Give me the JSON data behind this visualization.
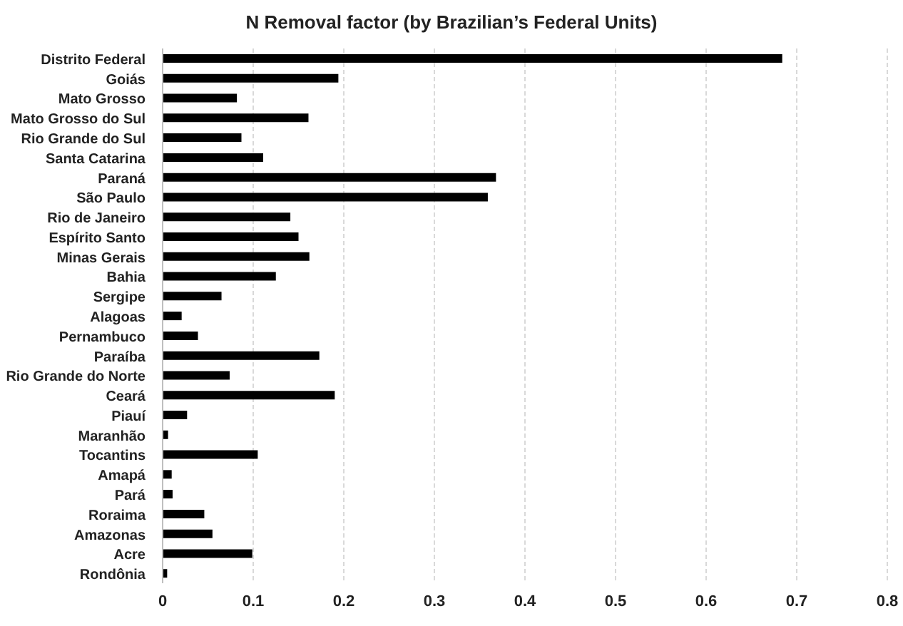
{
  "chart_data": {
    "type": "bar",
    "orientation": "horizontal",
    "title": "N Removal factor  (by Brazilian’s Federal Units)",
    "categories": [
      "Distrito Federal",
      "Goiás",
      "Mato Grosso",
      "Mato Grosso do Sul",
      "Rio Grande do Sul",
      "Santa Catarina",
      "Paraná",
      "São Paulo",
      "Rio de Janeiro",
      "Espírito Santo",
      "Minas Gerais",
      "Bahia",
      "Sergipe",
      "Alagoas",
      "Pernambuco",
      "Paraíba",
      "Rio Grande do Norte",
      "Ceará",
      "Piauí",
      "Maranhão",
      "Tocantins",
      "Amapá",
      "Pará",
      "Roraima",
      "Amazonas",
      "Acre",
      "Rondônia"
    ],
    "values": [
      0.684,
      0.194,
      0.082,
      0.161,
      0.087,
      0.111,
      0.368,
      0.359,
      0.141,
      0.15,
      0.162,
      0.125,
      0.065,
      0.021,
      0.039,
      0.173,
      0.074,
      0.19,
      0.027,
      0.006,
      0.105,
      0.01,
      0.011,
      0.046,
      0.055,
      0.099,
      0.005
    ],
    "color": "#000000",
    "xlim": [
      0,
      0.8
    ],
    "xticks": [
      0,
      0.1,
      0.2,
      0.3,
      0.4,
      0.5,
      0.6,
      0.7,
      0.8
    ],
    "grid": "x"
  }
}
